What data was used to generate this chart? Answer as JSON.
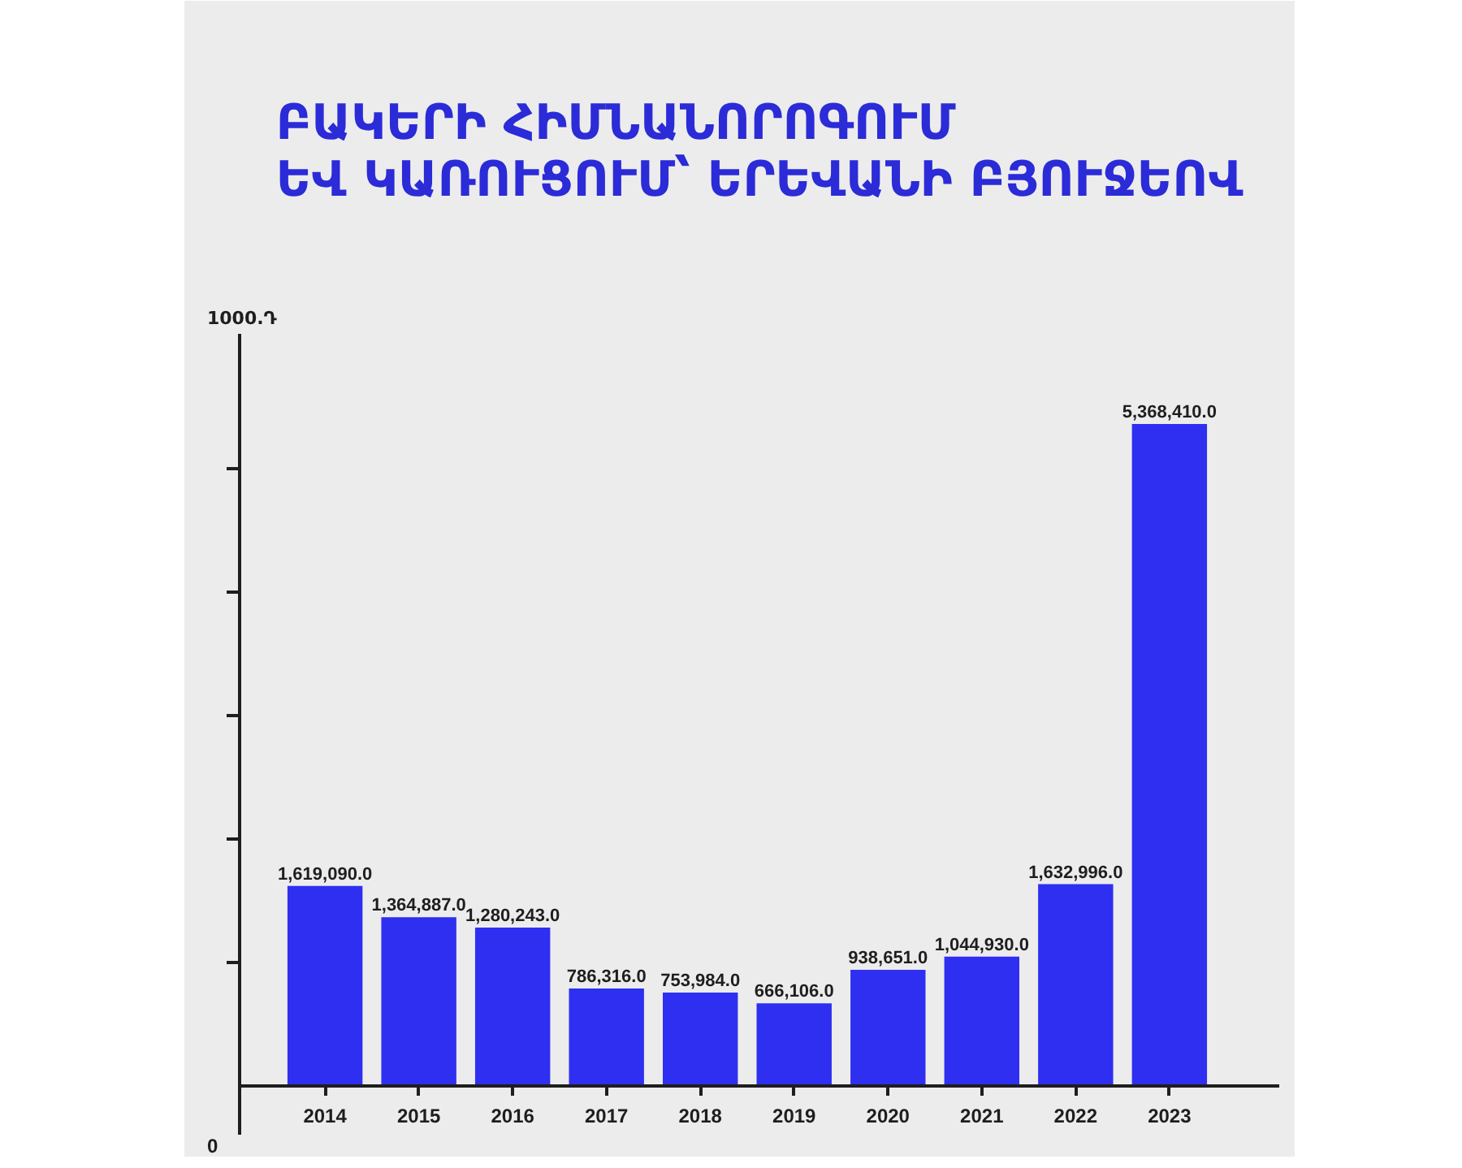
{
  "chart_data": {
    "type": "bar",
    "title": "ԲԱԿԵՐԻ ՀԻՄՆԱՆՈՐՈԳՈՒՄ\nԵՎ ԿԱՌՈՒՑՈՒՄ՝ ԵՐԵՎԱՆԻ ԲՅՈՒՋԵՈՎ",
    "ylabel": "1000.Դ",
    "categories": [
      "2014",
      "2015",
      "2016",
      "2017",
      "2018",
      "2019",
      "2020",
      "2021",
      "2022",
      "2023"
    ],
    "values": [
      1619090,
      1364887,
      1280243,
      786316,
      753984,
      666106,
      938651,
      1044930,
      1632996,
      5368410
    ],
    "value_labels": [
      "1,619,090.0",
      "1,364,887.0",
      "1,280,243.0",
      "786,316.0",
      "753,984.0",
      "666,106.0",
      "938,651.0",
      "1,044,930.0",
      "1,632,996.0",
      "5,368,410.0"
    ],
    "color": "#2f2ff2",
    "ylim": [
      -400000,
      6100000
    ],
    "yticks": [
      {
        "value": 1000000,
        "label": null
      },
      {
        "value": 2000000,
        "label": null
      },
      {
        "value": 3000000,
        "label": null
      },
      {
        "value": 4000000,
        "label": null
      },
      {
        "value": 5000000,
        "label": null
      }
    ],
    "annotations": [
      "0"
    ],
    "grid": false
  }
}
